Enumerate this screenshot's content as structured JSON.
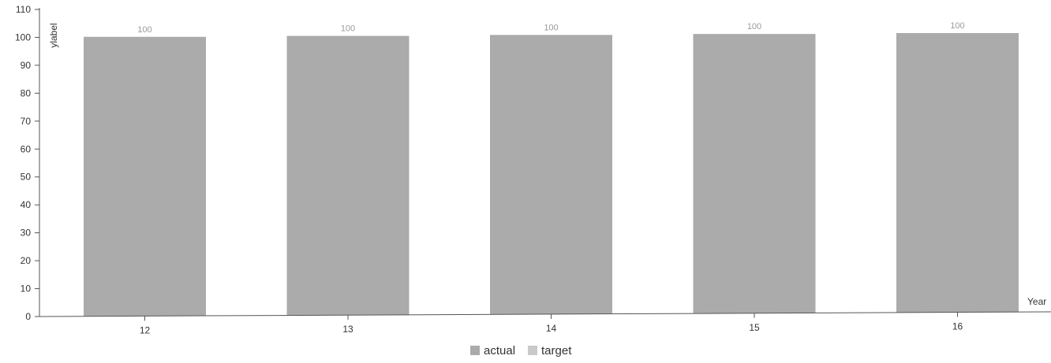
{
  "chart_data": {
    "type": "bar",
    "categories": [
      "12",
      "13",
      "14",
      "15",
      "16"
    ],
    "series": [
      {
        "name": "actual",
        "values": [
          100,
          100,
          100,
          100,
          100
        ],
        "color": "#ababab"
      },
      {
        "name": "target",
        "values": [
          100,
          100,
          100,
          100,
          100
        ],
        "color": "#c9c9c9"
      }
    ],
    "data_labels": [
      "100",
      "100",
      "100",
      "100",
      "100"
    ],
    "xlabel": "Year",
    "ylabel": "ylabel",
    "ylim": [
      0,
      110
    ],
    "yticks": [
      0,
      10,
      20,
      30,
      40,
      50,
      60,
      70,
      80,
      90,
      100,
      110
    ],
    "grid": false,
    "legend": "bottom-center"
  }
}
